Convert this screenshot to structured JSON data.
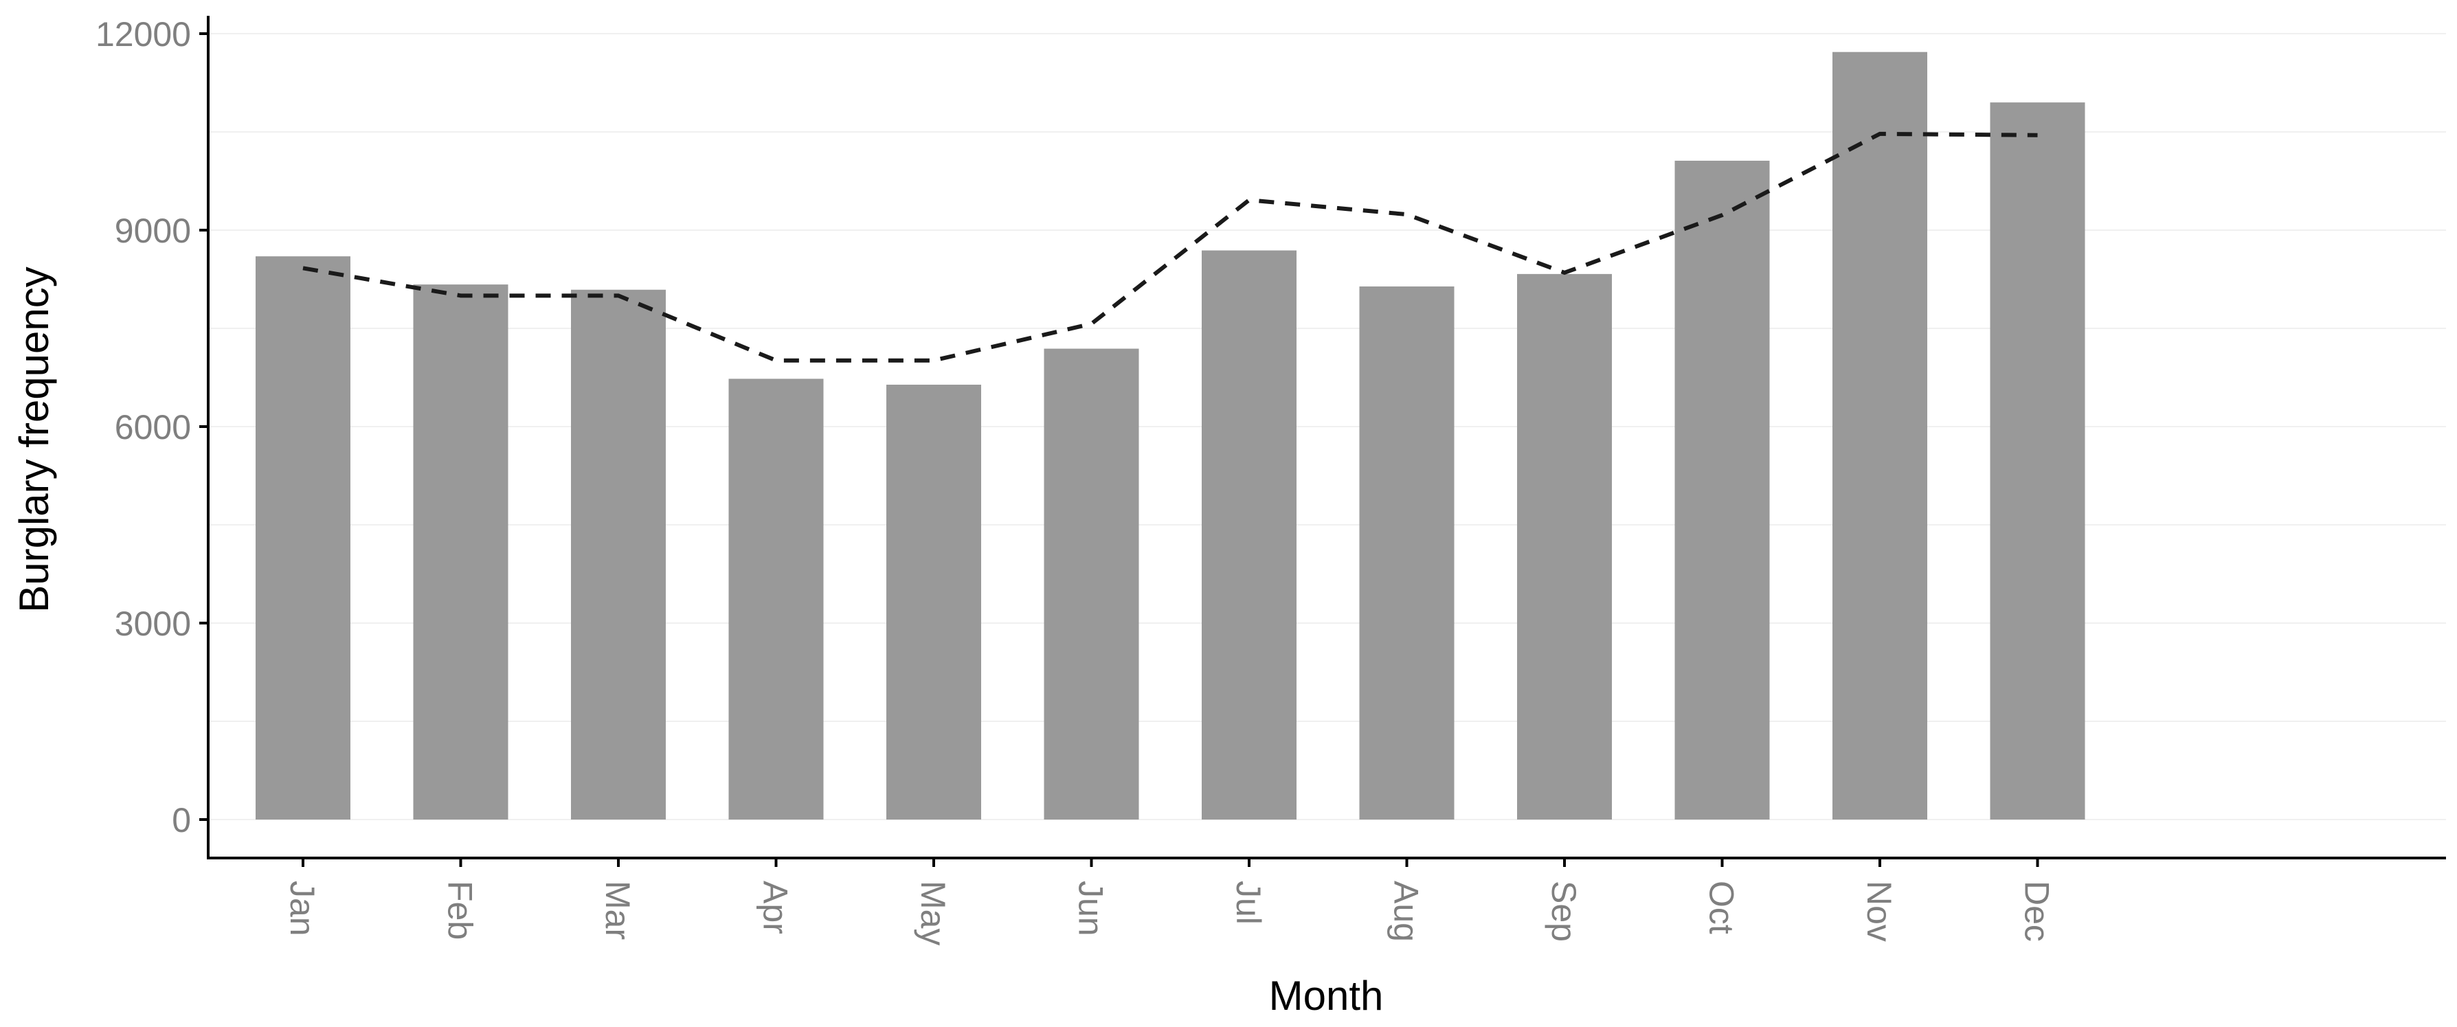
{
  "chart_data": {
    "type": "bar",
    "categories": [
      "Jan",
      "Feb",
      "Mar",
      "Apr",
      "May",
      "Jun",
      "Jul",
      "Aug",
      "Sep",
      "Oct",
      "Nov",
      "Dec"
    ],
    "series": [
      {
        "type": "bar",
        "values": [
          8600,
          8170,
          8090,
          6730,
          6640,
          7190,
          8690,
          8140,
          8330,
          10060,
          11720,
          10950
        ],
        "color": "#999999"
      },
      {
        "type": "line",
        "style": "dashed",
        "values": [
          8420,
          8000,
          8000,
          7010,
          7010,
          7570,
          9460,
          9240,
          8350,
          9230,
          10470,
          10450
        ],
        "color": "#1a1a1a"
      }
    ],
    "xlabel": "Month",
    "ylabel": "Burglary frequency",
    "ylim": [
      0,
      12000
    ],
    "yticks": [
      "0",
      "3000",
      "6000",
      "9000",
      "12000"
    ],
    "grid": "light horizontal",
    "legend": "none"
  }
}
